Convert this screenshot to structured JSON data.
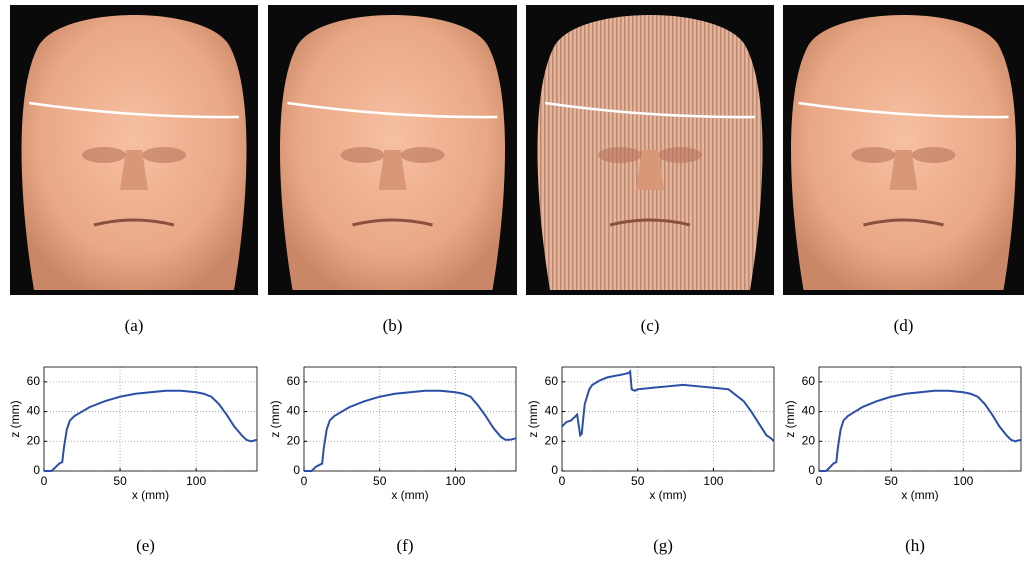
{
  "images": [
    {
      "caption": "(a)"
    },
    {
      "caption": "(b)"
    },
    {
      "caption": "(c)"
    },
    {
      "caption": "(d)"
    }
  ],
  "chart_data": [
    {
      "type": "line",
      "caption": "(e)",
      "x_label": "x (mm)",
      "y_label": "z (mm)",
      "x": [
        0,
        5,
        8,
        10,
        12,
        13,
        15,
        17,
        20,
        25,
        30,
        40,
        50,
        60,
        70,
        80,
        90,
        100,
        105,
        110,
        115,
        120,
        125,
        130,
        133,
        136,
        140
      ],
      "series": [
        {
          "color": "#2b4fa8",
          "values": [
            0,
            0,
            3,
            5,
            6,
            15,
            28,
            34,
            37,
            40,
            43,
            47,
            50,
            52,
            53,
            54,
            54,
            53,
            52,
            50,
            45,
            38,
            30,
            24,
            21,
            20,
            21
          ]
        }
      ],
      "xlim": [
        0,
        140
      ],
      "ylim": [
        0,
        70
      ],
      "xticks": [
        0,
        50,
        100
      ],
      "yticks": [
        0,
        20,
        40,
        60
      ],
      "grid": true
    },
    {
      "type": "line",
      "caption": "(f)",
      "x_label": "x (mm)",
      "y_label": "z (mm)",
      "x": [
        0,
        5,
        8,
        10,
        12,
        13,
        15,
        17,
        20,
        25,
        30,
        40,
        50,
        60,
        70,
        80,
        90,
        100,
        105,
        110,
        115,
        120,
        125,
        130,
        133,
        136,
        140
      ],
      "series": [
        {
          "color": "#2b4fa8",
          "values": [
            0,
            0,
            3,
            4,
            5,
            15,
            28,
            34,
            37,
            40,
            43,
            47,
            50,
            52,
            53,
            54,
            54,
            53,
            52,
            50,
            44,
            37,
            29,
            23,
            21,
            21,
            22
          ]
        }
      ],
      "xlim": [
        0,
        140
      ],
      "ylim": [
        0,
        70
      ],
      "xticks": [
        0,
        50,
        100
      ],
      "yticks": [
        0,
        20,
        40,
        60
      ],
      "grid": true
    },
    {
      "type": "line",
      "caption": "(g)",
      "x_label": "x (mm)",
      "y_label": "z (mm)",
      "x": [
        0,
        3,
        6,
        9,
        10,
        12,
        13,
        15,
        18,
        20,
        25,
        30,
        35,
        40,
        44,
        45,
        46,
        48,
        50,
        60,
        70,
        80,
        90,
        100,
        110,
        120,
        125,
        130,
        135,
        138,
        140
      ],
      "series": [
        {
          "color": "#2b4fa8",
          "values": [
            30,
            33,
            34,
            37,
            38,
            24,
            25,
            45,
            55,
            58,
            61,
            63,
            64,
            65,
            66,
            67,
            55,
            54,
            55,
            56,
            57,
            58,
            57,
            56,
            55,
            47,
            40,
            32,
            24,
            22,
            20
          ]
        }
      ],
      "xlim": [
        0,
        140
      ],
      "ylim": [
        0,
        70
      ],
      "xticks": [
        0,
        50,
        100
      ],
      "yticks": [
        0,
        20,
        40,
        60
      ],
      "grid": true
    },
    {
      "type": "line",
      "caption": "(h)",
      "x_label": "x (mm)",
      "y_label": "z (mm)",
      "x": [
        0,
        5,
        8,
        10,
        12,
        13,
        15,
        17,
        20,
        25,
        30,
        40,
        50,
        60,
        70,
        80,
        90,
        100,
        105,
        110,
        115,
        120,
        125,
        130,
        133,
        136,
        140
      ],
      "series": [
        {
          "color": "#2b4fa8",
          "values": [
            0,
            0,
            3,
            5,
            6,
            15,
            28,
            34,
            37,
            40,
            43,
            47,
            50,
            52,
            53,
            54,
            54,
            53,
            52,
            50,
            45,
            38,
            30,
            24,
            21,
            20,
            21
          ]
        }
      ],
      "xlim": [
        0,
        140
      ],
      "ylim": [
        0,
        70
      ],
      "xticks": [
        0,
        50,
        100
      ],
      "yticks": [
        0,
        20,
        40,
        60
      ],
      "grid": true
    }
  ]
}
